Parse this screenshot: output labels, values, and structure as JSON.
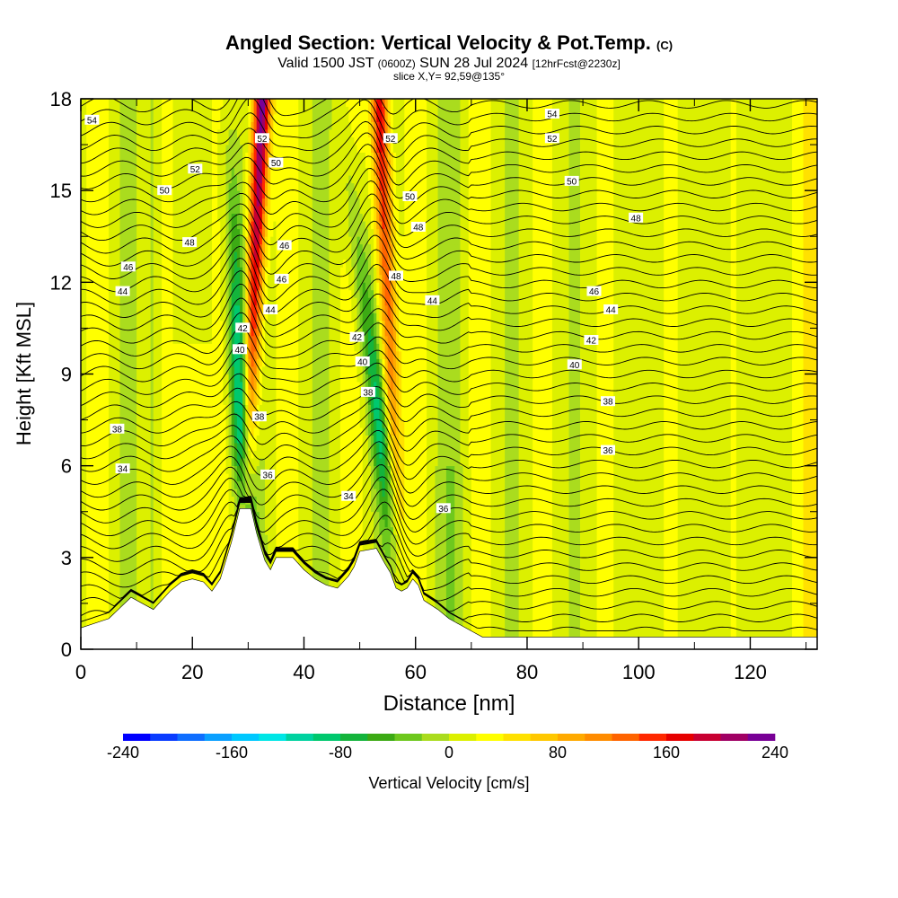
{
  "header": {
    "title": "Angled Section: Vertical Velocity & Pot.Temp.",
    "title_unit": "(C)",
    "valid_prefix": "Valid 1500 JST",
    "valid_utc": "(0600Z)",
    "valid_date": "SUN 28 Jul 2024",
    "forecast": "[12hrFcst@2230z]",
    "slice": "slice X,Y= 92,59@135°"
  },
  "chart_data": {
    "type": "heatmap",
    "title": "Angled Section: Vertical Velocity & Pot.Temp. (C)",
    "xlabel": "Distance [nm]",
    "ylabel": "Height [Kft MSL]",
    "xlim": [
      0,
      132
    ],
    "ylim": [
      0,
      18
    ],
    "x_ticks": [
      0,
      20,
      40,
      60,
      80,
      100,
      120
    ],
    "y_ticks": [
      0,
      3,
      6,
      9,
      12,
      15,
      18
    ],
    "grid": false,
    "colorbar": {
      "label": "Vertical Velocity [cm/s]",
      "ticks": [
        -240,
        -160,
        -80,
        0,
        80,
        160,
        240
      ],
      "levels": [
        -240,
        -220,
        -200,
        -180,
        -160,
        -140,
        -120,
        -100,
        -80,
        -60,
        -40,
        -20,
        0,
        20,
        40,
        60,
        80,
        100,
        120,
        140,
        160,
        180,
        200,
        220,
        240
      ],
      "colors": [
        "#0000ff",
        "#0a3cff",
        "#0f6eff",
        "#0aa0ff",
        "#00c8ff",
        "#00e6e6",
        "#00d2a0",
        "#00c86e",
        "#14b43c",
        "#3caa14",
        "#6ec81e",
        "#aadc1e",
        "#dcf000",
        "#ffff00",
        "#ffe100",
        "#ffc800",
        "#ffaa00",
        "#ff8c00",
        "#ff6400",
        "#ff2800",
        "#e60000",
        "#c80032",
        "#a00064",
        "#780096"
      ]
    },
    "updraft_bands": [
      {
        "x_bottom": 28,
        "x_top": 32,
        "peak_cms": 240
      },
      {
        "x_bottom": 57,
        "x_top": 53,
        "peak_cms": 180
      }
    ],
    "downdraft_bands": [
      {
        "x_bottom": 32,
        "x_top": 28,
        "peak_cms": -160
      },
      {
        "x_bottom": 60,
        "x_top": 48,
        "peak_cms": -100
      }
    ],
    "terrain_height_kft": [
      [
        0,
        0.7
      ],
      [
        5,
        1.0
      ],
      [
        9,
        1.7
      ],
      [
        13,
        1.3
      ],
      [
        16,
        1.9
      ],
      [
        18,
        2.2
      ],
      [
        20,
        2.3
      ],
      [
        22,
        2.2
      ],
      [
        23.5,
        1.9
      ],
      [
        25,
        2.3
      ],
      [
        27,
        3.5
      ],
      [
        28.5,
        4.6
      ],
      [
        30.5,
        4.6
      ],
      [
        31.5,
        3.8
      ],
      [
        33,
        2.9
      ],
      [
        34,
        2.6
      ],
      [
        35,
        3.0
      ],
      [
        38,
        3.0
      ],
      [
        40,
        2.6
      ],
      [
        42,
        2.3
      ],
      [
        44,
        2.1
      ],
      [
        46,
        2.0
      ],
      [
        48,
        2.4
      ],
      [
        49,
        2.7
      ],
      [
        50,
        3.2
      ],
      [
        53,
        3.3
      ],
      [
        54.5,
        2.8
      ],
      [
        55.5,
        2.5
      ],
      [
        56.5,
        2.0
      ],
      [
        57.5,
        1.9
      ],
      [
        58.5,
        2.0
      ],
      [
        59.5,
        2.3
      ],
      [
        60.5,
        2.1
      ],
      [
        61.5,
        1.6
      ],
      [
        64,
        1.3
      ],
      [
        66,
        1.0
      ],
      [
        68,
        0.8
      ],
      [
        70,
        0.6
      ],
      [
        72,
        0.4
      ],
      [
        132,
        0.4
      ]
    ],
    "theta_labels": [
      {
        "value": "54",
        "x": 2,
        "y": 17.3
      },
      {
        "value": "52",
        "x": 20.5,
        "y": 15.7
      },
      {
        "value": "50",
        "x": 15,
        "y": 15.0
      },
      {
        "value": "48",
        "x": 19.5,
        "y": 13.3
      },
      {
        "value": "46",
        "x": 8.5,
        "y": 12.5
      },
      {
        "value": "44",
        "x": 7.5,
        "y": 11.7
      },
      {
        "value": "52",
        "x": 32.5,
        "y": 16.7
      },
      {
        "value": "50",
        "x": 35,
        "y": 15.9
      },
      {
        "value": "46",
        "x": 36.5,
        "y": 13.2
      },
      {
        "value": "46",
        "x": 36,
        "y": 12.1
      },
      {
        "value": "44",
        "x": 34,
        "y": 11.1
      },
      {
        "value": "42",
        "x": 29,
        "y": 10.5
      },
      {
        "value": "40",
        "x": 28.5,
        "y": 9.8
      },
      {
        "value": "38",
        "x": 32,
        "y": 7.6
      },
      {
        "value": "38",
        "x": 6.5,
        "y": 7.2
      },
      {
        "value": "34",
        "x": 7.5,
        "y": 5.9
      },
      {
        "value": "36",
        "x": 33.5,
        "y": 5.7
      },
      {
        "value": "34",
        "x": 48,
        "y": 5.0
      },
      {
        "value": "36",
        "x": 65,
        "y": 4.6
      },
      {
        "value": "52",
        "x": 55.5,
        "y": 16.7
      },
      {
        "value": "50",
        "x": 59,
        "y": 14.8
      },
      {
        "value": "48",
        "x": 60.5,
        "y": 13.8
      },
      {
        "value": "48",
        "x": 56.5,
        "y": 12.2
      },
      {
        "value": "44",
        "x": 63,
        "y": 11.4
      },
      {
        "value": "42",
        "x": 49.5,
        "y": 10.2
      },
      {
        "value": "40",
        "x": 50.5,
        "y": 9.4
      },
      {
        "value": "38",
        "x": 51.5,
        "y": 8.4
      },
      {
        "value": "54",
        "x": 84.5,
        "y": 17.5
      },
      {
        "value": "52",
        "x": 84.5,
        "y": 16.7
      },
      {
        "value": "50",
        "x": 88,
        "y": 15.3
      },
      {
        "value": "48",
        "x": 99.5,
        "y": 14.1
      },
      {
        "value": "46",
        "x": 92,
        "y": 11.7
      },
      {
        "value": "44",
        "x": 95,
        "y": 11.1
      },
      {
        "value": "42",
        "x": 91.5,
        "y": 10.1
      },
      {
        "value": "40",
        "x": 88.5,
        "y": 9.3
      },
      {
        "value": "38",
        "x": 94.5,
        "y": 8.1
      },
      {
        "value": "36",
        "x": 94.5,
        "y": 6.5
      }
    ]
  }
}
